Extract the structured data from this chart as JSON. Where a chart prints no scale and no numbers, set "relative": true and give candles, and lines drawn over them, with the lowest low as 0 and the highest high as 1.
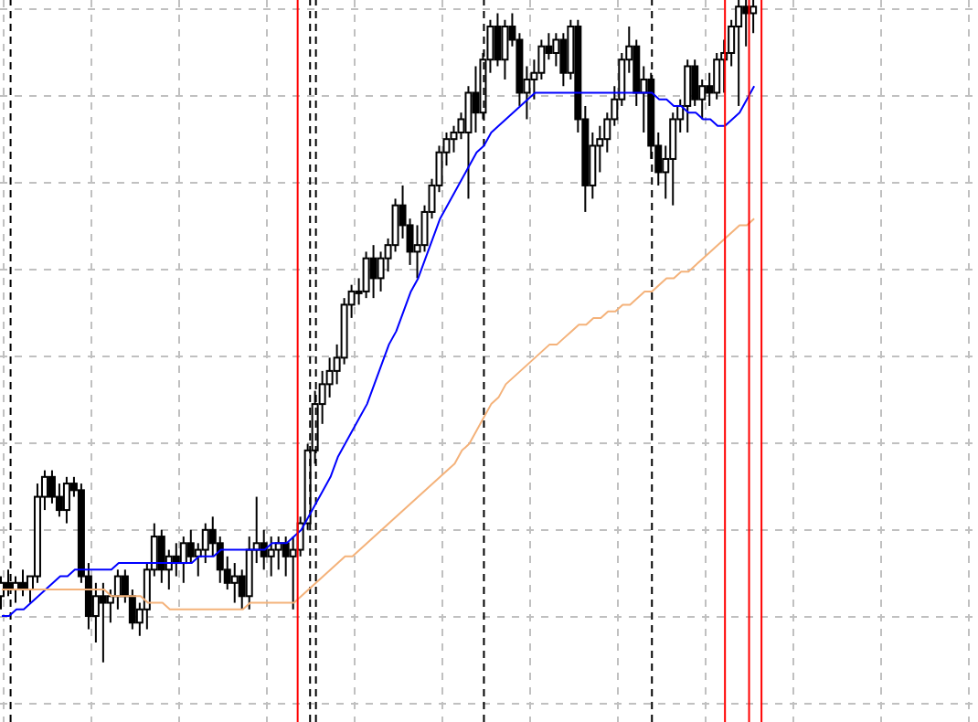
{
  "chart_data": {
    "type": "candlestick",
    "relative": true,
    "grid": true,
    "tick_labels": false,
    "categories": [
      null,
      null,
      null,
      null,
      null,
      null,
      null,
      null,
      null,
      null,
      null,
      null,
      null,
      null,
      null,
      null,
      null,
      null,
      null,
      null,
      null,
      null,
      null,
      null,
      null,
      null,
      null,
      null,
      null,
      null,
      null,
      null,
      null,
      null,
      null,
      null,
      null,
      null,
      null,
      null,
      null,
      null,
      null,
      null,
      null,
      null,
      null,
      null,
      null,
      null,
      null,
      null,
      null,
      null,
      null,
      null,
      null,
      null,
      null,
      null,
      null,
      null,
      null,
      null,
      null,
      null,
      null,
      null,
      null,
      null,
      null,
      null,
      null,
      null,
      null,
      null,
      null,
      null,
      null,
      null,
      null,
      null,
      null,
      null,
      null,
      null,
      null,
      null,
      null,
      null,
      null,
      null,
      null,
      null,
      null,
      null,
      null,
      null,
      null,
      null,
      null,
      null,
      null,
      null
    ],
    "ohlc": [
      [
        0.1,
        0.13,
        0.08,
        0.12
      ],
      [
        0.12,
        0.14,
        0.1,
        0.11
      ],
      [
        0.11,
        0.13,
        0.09,
        0.12
      ],
      [
        0.12,
        0.14,
        0.1,
        0.11
      ],
      [
        0.11,
        0.13,
        0.09,
        0.13
      ],
      [
        0.13,
        0.27,
        0.12,
        0.25
      ],
      [
        0.25,
        0.29,
        0.23,
        0.28
      ],
      [
        0.28,
        0.29,
        0.24,
        0.25
      ],
      [
        0.25,
        0.27,
        0.22,
        0.23
      ],
      [
        0.23,
        0.28,
        0.21,
        0.27
      ],
      [
        0.27,
        0.28,
        0.25,
        0.26
      ],
      [
        0.26,
        0.27,
        0.12,
        0.13
      ],
      [
        0.13,
        0.15,
        0.05,
        0.07
      ],
      [
        0.07,
        0.12,
        0.03,
        0.1
      ],
      [
        0.1,
        0.12,
        0.0,
        0.09
      ],
      [
        0.09,
        0.11,
        0.06,
        0.1
      ],
      [
        0.1,
        0.14,
        0.08,
        0.13
      ],
      [
        0.13,
        0.14,
        0.09,
        0.1
      ],
      [
        0.1,
        0.11,
        0.05,
        0.06
      ],
      [
        0.06,
        0.09,
        0.04,
        0.08
      ],
      [
        0.08,
        0.15,
        0.05,
        0.14
      ],
      [
        0.14,
        0.21,
        0.13,
        0.19
      ],
      [
        0.19,
        0.2,
        0.12,
        0.14
      ],
      [
        0.14,
        0.17,
        0.11,
        0.16
      ],
      [
        0.16,
        0.18,
        0.13,
        0.15
      ],
      [
        0.15,
        0.19,
        0.12,
        0.18
      ],
      [
        0.18,
        0.2,
        0.15,
        0.16
      ],
      [
        0.16,
        0.18,
        0.13,
        0.17
      ],
      [
        0.17,
        0.21,
        0.15,
        0.2
      ],
      [
        0.2,
        0.22,
        0.16,
        0.18
      ],
      [
        0.18,
        0.19,
        0.12,
        0.14
      ],
      [
        0.14,
        0.16,
        0.11,
        0.12
      ],
      [
        0.12,
        0.15,
        0.09,
        0.13
      ],
      [
        0.13,
        0.14,
        0.08,
        0.1
      ],
      [
        0.1,
        0.19,
        0.08,
        0.17
      ],
      [
        0.17,
        0.25,
        0.15,
        0.18
      ],
      [
        0.18,
        0.2,
        0.14,
        0.16
      ],
      [
        0.16,
        0.19,
        0.13,
        0.17
      ],
      [
        0.17,
        0.19,
        0.14,
        0.18
      ],
      [
        0.18,
        0.19,
        0.13,
        0.16
      ],
      [
        0.16,
        0.19,
        0.08,
        0.17
      ],
      [
        0.17,
        0.22,
        0.16,
        0.21
      ],
      [
        0.21,
        0.33,
        0.2,
        0.32
      ],
      [
        0.32,
        0.41,
        0.3,
        0.39
      ],
      [
        0.39,
        0.44,
        0.36,
        0.42
      ],
      [
        0.42,
        0.46,
        0.4,
        0.44
      ],
      [
        0.44,
        0.48,
        0.42,
        0.46
      ],
      [
        0.46,
        0.55,
        0.45,
        0.54
      ],
      [
        0.54,
        0.57,
        0.52,
        0.56
      ],
      [
        0.56,
        0.58,
        0.54,
        0.56
      ],
      [
        0.56,
        0.62,
        0.55,
        0.61
      ],
      [
        0.61,
        0.63,
        0.55,
        0.58
      ],
      [
        0.58,
        0.62,
        0.56,
        0.61
      ],
      [
        0.61,
        0.64,
        0.59,
        0.63
      ],
      [
        0.63,
        0.7,
        0.62,
        0.69
      ],
      [
        0.69,
        0.72,
        0.64,
        0.66
      ],
      [
        0.66,
        0.67,
        0.6,
        0.62
      ],
      [
        0.62,
        0.66,
        0.58,
        0.63
      ],
      [
        0.63,
        0.69,
        0.62,
        0.68
      ],
      [
        0.68,
        0.73,
        0.67,
        0.72
      ],
      [
        0.72,
        0.78,
        0.71,
        0.77
      ],
      [
        0.77,
        0.8,
        0.75,
        0.79
      ],
      [
        0.79,
        0.81,
        0.77,
        0.8
      ],
      [
        0.8,
        0.83,
        0.79,
        0.82
      ],
      [
        0.8,
        0.87,
        0.7,
        0.86
      ],
      [
        0.86,
        0.9,
        0.8,
        0.83
      ],
      [
        0.83,
        0.92,
        0.82,
        0.91
      ],
      [
        0.91,
        0.97,
        0.89,
        0.96
      ],
      [
        0.96,
        0.98,
        0.9,
        0.91
      ],
      [
        0.91,
        0.97,
        0.88,
        0.96
      ],
      [
        0.96,
        0.98,
        0.93,
        0.94
      ],
      [
        0.94,
        0.95,
        0.84,
        0.86
      ],
      [
        0.86,
        0.9,
        0.82,
        0.88
      ],
      [
        0.88,
        0.91,
        0.85,
        0.89
      ],
      [
        0.89,
        0.94,
        0.88,
        0.93
      ],
      [
        0.93,
        0.95,
        0.91,
        0.92
      ],
      [
        0.92,
        0.95,
        0.9,
        0.94
      ],
      [
        0.94,
        0.95,
        0.87,
        0.89
      ],
      [
        0.89,
        0.97,
        0.88,
        0.96
      ],
      [
        0.96,
        0.97,
        0.8,
        0.82
      ],
      [
        0.82,
        0.84,
        0.68,
        0.72
      ],
      [
        0.72,
        0.8,
        0.7,
        0.78
      ],
      [
        0.78,
        0.81,
        0.74,
        0.79
      ],
      [
        0.79,
        0.83,
        0.77,
        0.82
      ],
      [
        0.82,
        0.87,
        0.81,
        0.85
      ],
      [
        0.85,
        0.92,
        0.84,
        0.91
      ],
      [
        0.91,
        0.96,
        0.89,
        0.93
      ],
      [
        0.93,
        0.94,
        0.84,
        0.86
      ],
      [
        0.86,
        0.9,
        0.8,
        0.88
      ],
      [
        0.88,
        0.89,
        0.76,
        0.78
      ],
      [
        0.78,
        0.8,
        0.72,
        0.74
      ],
      [
        0.74,
        0.78,
        0.7,
        0.76
      ],
      [
        0.76,
        0.83,
        0.69,
        0.82
      ],
      [
        0.82,
        0.85,
        0.8,
        0.84
      ],
      [
        0.84,
        0.91,
        0.8,
        0.9
      ],
      [
        0.9,
        0.91,
        0.84,
        0.85
      ],
      [
        0.85,
        0.88,
        0.82,
        0.87
      ],
      [
        0.87,
        0.89,
        0.84,
        0.86
      ],
      [
        0.86,
        0.92,
        0.85,
        0.91
      ],
      [
        0.91,
        0.94,
        0.86,
        0.92
      ],
      [
        0.92,
        0.97,
        0.9,
        0.96
      ],
      [
        0.96,
        1.0,
        0.84,
        0.99
      ],
      [
        0.99,
        1.0,
        0.93,
        0.98
      ],
      [
        0.98,
        1.0,
        0.95,
        0.99
      ]
    ],
    "series": [
      {
        "type": "line",
        "color": "#0000ff",
        "values": [
          0.07,
          0.07,
          0.08,
          0.08,
          0.09,
          0.1,
          0.11,
          0.12,
          0.13,
          0.13,
          0.14,
          0.14,
          0.14,
          0.14,
          0.14,
          0.14,
          0.15,
          0.15,
          0.15,
          0.15,
          0.15,
          0.15,
          0.15,
          0.15,
          0.15,
          0.15,
          0.15,
          0.16,
          0.16,
          0.16,
          0.17,
          0.17,
          0.17,
          0.17,
          0.17,
          0.17,
          0.17,
          0.18,
          0.18,
          0.18,
          0.19,
          0.2,
          0.22,
          0.24,
          0.26,
          0.28,
          0.31,
          0.33,
          0.35,
          0.37,
          0.39,
          0.42,
          0.45,
          0.48,
          0.5,
          0.53,
          0.56,
          0.58,
          0.61,
          0.64,
          0.67,
          0.69,
          0.71,
          0.73,
          0.75,
          0.77,
          0.78,
          0.8,
          0.81,
          0.82,
          0.83,
          0.84,
          0.85,
          0.86,
          0.86,
          0.86,
          0.86,
          0.86,
          0.86,
          0.86,
          0.86,
          0.86,
          0.86,
          0.86,
          0.86,
          0.86,
          0.86,
          0.86,
          0.86,
          0.86,
          0.85,
          0.85,
          0.84,
          0.84,
          0.83,
          0.83,
          0.82,
          0.82,
          0.81,
          0.81,
          0.82,
          0.83,
          0.85,
          0.87
        ]
      },
      {
        "type": "line",
        "color": "#f4b27a",
        "values": [
          0.11,
          0.11,
          0.11,
          0.11,
          0.11,
          0.11,
          0.11,
          0.11,
          0.11,
          0.11,
          0.11,
          0.11,
          0.11,
          0.11,
          0.11,
          0.1,
          0.1,
          0.1,
          0.1,
          0.1,
          0.09,
          0.09,
          0.09,
          0.08,
          0.08,
          0.08,
          0.08,
          0.08,
          0.08,
          0.08,
          0.08,
          0.08,
          0.08,
          0.08,
          0.09,
          0.09,
          0.09,
          0.09,
          0.09,
          0.09,
          0.09,
          0.1,
          0.11,
          0.12,
          0.13,
          0.14,
          0.15,
          0.16,
          0.16,
          0.17,
          0.18,
          0.19,
          0.2,
          0.21,
          0.22,
          0.23,
          0.24,
          0.25,
          0.26,
          0.27,
          0.28,
          0.29,
          0.3,
          0.32,
          0.33,
          0.35,
          0.37,
          0.39,
          0.4,
          0.42,
          0.43,
          0.44,
          0.45,
          0.46,
          0.47,
          0.48,
          0.48,
          0.49,
          0.5,
          0.51,
          0.51,
          0.52,
          0.52,
          0.53,
          0.53,
          0.54,
          0.54,
          0.55,
          0.56,
          0.56,
          0.57,
          0.58,
          0.58,
          0.59,
          0.59,
          0.6,
          0.61,
          0.62,
          0.63,
          0.64,
          0.65,
          0.66,
          0.66,
          0.67
        ]
      }
    ]
  }
}
